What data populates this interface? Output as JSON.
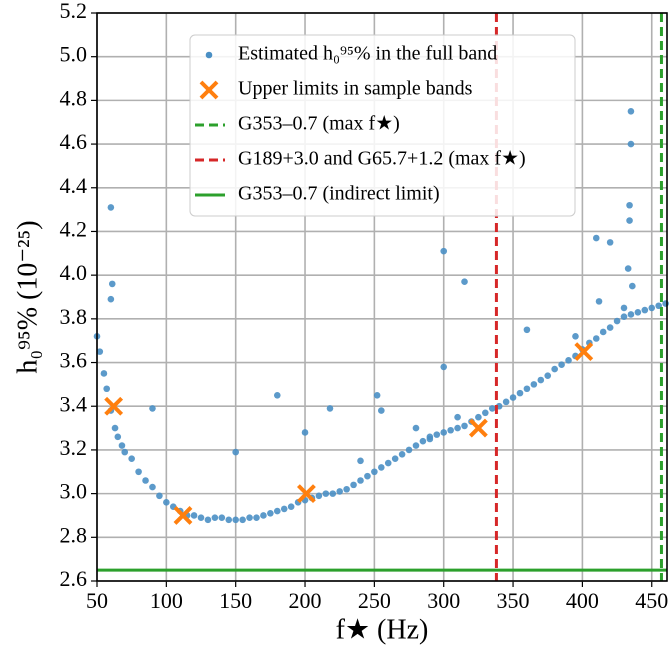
{
  "chart_data": {
    "type": "scatter",
    "xlabel": "f★ (Hz)",
    "ylabel": "h₀⁹⁵% (10⁻²⁵)",
    "xlim": [
      50,
      461
    ],
    "ylim": [
      2.6,
      5.2
    ],
    "xticks": [
      50,
      100,
      150,
      200,
      250,
      300,
      350,
      400,
      450
    ],
    "yticks": [
      2.6,
      2.8,
      {
        "value": 3,
        "label": "3.0"
      },
      3.2,
      3.4,
      3.6,
      3.8,
      {
        "value": 4,
        "label": "4.0"
      },
      4.2,
      4.4,
      4.6,
      4.8,
      {
        "value": 5,
        "label": "5.0"
      },
      5.2
    ],
    "grid": true,
    "legend": "upper center",
    "series": [
      {
        "name": "Estimated h₀⁹⁵% in the full band",
        "color": "#4a8fc4",
        "marker": "o",
        "x": [
          50,
          52,
          55,
          57,
          60,
          63,
          65,
          68,
          70,
          75,
          80,
          85,
          90,
          95,
          100,
          105,
          110,
          115,
          120,
          125,
          130,
          135,
          140,
          145,
          150,
          155,
          160,
          165,
          170,
          175,
          180,
          185,
          190,
          195,
          200,
          205,
          210,
          215,
          220,
          225,
          230,
          235,
          240,
          245,
          250,
          255,
          260,
          265,
          270,
          275,
          280,
          285,
          290,
          295,
          300,
          305,
          310,
          315,
          320,
          325,
          330,
          335,
          340,
          345,
          350,
          355,
          360,
          365,
          370,
          375,
          380,
          385,
          390,
          395,
          400,
          405,
          410,
          415,
          420,
          425,
          430,
          435,
          440,
          445,
          450,
          455,
          460,
          60,
          61,
          60,
          90,
          150,
          180,
          200,
          218,
          252,
          300,
          300,
          315,
          360,
          410,
          412,
          435,
          435,
          434,
          434,
          433,
          436,
          420,
          395,
          430,
          255,
          280,
          290,
          240,
          310
        ],
        "values": [
          3.72,
          3.65,
          3.55,
          3.48,
          3.38,
          3.3,
          3.26,
          3.22,
          3.19,
          3.16,
          3.1,
          3.06,
          3.03,
          2.99,
          2.96,
          2.94,
          2.92,
          2.9,
          2.9,
          2.89,
          2.88,
          2.89,
          2.89,
          2.88,
          2.88,
          2.88,
          2.89,
          2.89,
          2.9,
          2.91,
          2.92,
          2.93,
          2.94,
          2.96,
          2.97,
          2.98,
          2.99,
          3.0,
          3.0,
          3.01,
          3.02,
          3.04,
          3.06,
          3.08,
          3.1,
          3.12,
          3.14,
          3.16,
          3.18,
          3.2,
          3.22,
          3.24,
          3.26,
          3.27,
          3.28,
          3.29,
          3.3,
          3.31,
          3.33,
          3.35,
          3.37,
          3.39,
          3.4,
          3.42,
          3.44,
          3.46,
          3.48,
          3.5,
          3.52,
          3.54,
          3.57,
          3.59,
          3.61,
          3.63,
          3.66,
          3.69,
          3.71,
          3.74,
          3.76,
          3.79,
          3.81,
          3.82,
          3.83,
          3.84,
          3.85,
          3.86,
          3.87,
          4.31,
          3.96,
          3.89,
          3.39,
          3.19,
          3.45,
          3.28,
          3.39,
          3.45,
          4.11,
          3.58,
          3.97,
          3.75,
          4.17,
          3.88,
          4.75,
          4.6,
          4.32,
          4.25,
          4.03,
          3.95,
          4.15,
          3.72,
          3.85,
          3.38,
          3.3,
          3.25,
          3.15,
          3.35
        ]
      },
      {
        "name": "Upper limits in sample bands",
        "color": "#ff7f0e",
        "marker": "x",
        "x": [
          62,
          112,
          201,
          325,
          401
        ],
        "values": [
          3.4,
          2.9,
          3.0,
          3.3,
          3.65
        ]
      }
    ],
    "lines": [
      {
        "name": "G353–0.7 (max f★)",
        "color": "#2ca02c",
        "style": "dashed",
        "orientation": "vertical",
        "value": 457
      },
      {
        "name": "G189+3.0 and G65.7+1.2 (max f★)",
        "color": "#d62728",
        "style": "dashed",
        "orientation": "vertical",
        "value": 338
      },
      {
        "name": "G353–0.7 (indirect limit)",
        "color": "#2ca02c",
        "style": "solid",
        "orientation": "horizontal",
        "value": 2.65
      }
    ]
  }
}
